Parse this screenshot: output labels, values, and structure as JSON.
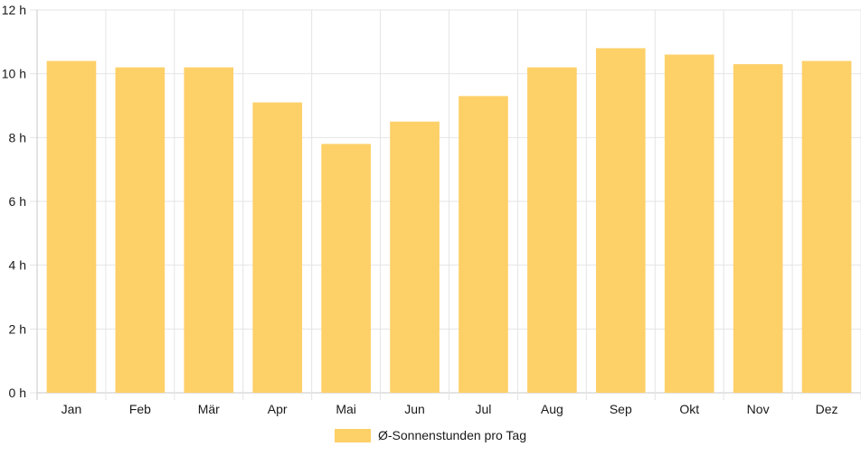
{
  "chart_data": {
    "type": "bar",
    "categories": [
      "Jan",
      "Feb",
      "Mär",
      "Apr",
      "Mai",
      "Jun",
      "Jul",
      "Aug",
      "Sep",
      "Okt",
      "Nov",
      "Dez"
    ],
    "series": [
      {
        "name": "Ø-Sonnenstunden pro Tag",
        "values": [
          10.4,
          10.2,
          10.2,
          9.1,
          7.8,
          8.5,
          9.3,
          10.2,
          10.8,
          10.6,
          10.3,
          10.4
        ],
        "color": "#FDD068"
      }
    ],
    "title": "",
    "xlabel": "",
    "ylabel": "",
    "ylim": [
      0,
      12
    ],
    "y_ticks": [
      "0 h",
      "2 h",
      "4 h",
      "6 h",
      "8 h",
      "10 h",
      "12 h"
    ],
    "grid": true,
    "legend_position": "bottom"
  },
  "colors": {
    "grid": "#e4e4e4",
    "axis": "#c8c8c8",
    "text": "#1a1a1a"
  }
}
